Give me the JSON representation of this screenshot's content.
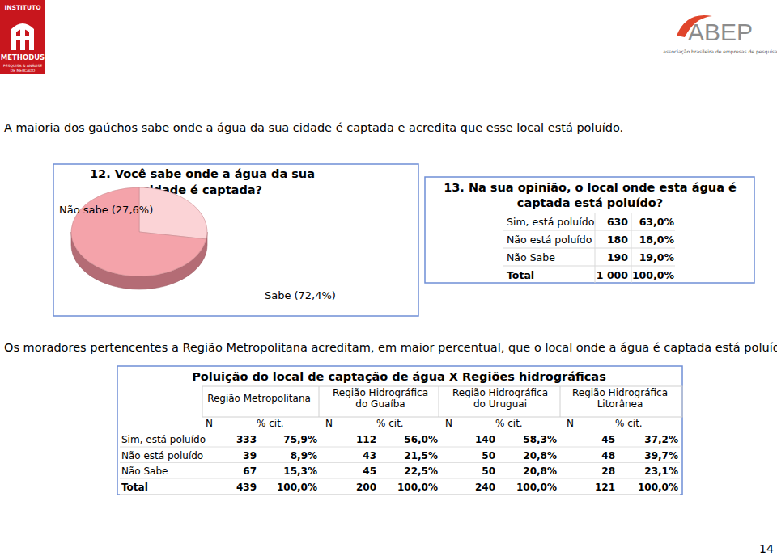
{
  "logos": {
    "methodus": [
      "INSTITUTO",
      "METHODUS",
      "PESQUISA & ANÁLISE",
      "DE MERCADO"
    ],
    "abep": {
      "name": "ABEP",
      "tagline": "associação brasileira de empresas de pesquisa"
    }
  },
  "headlines": [
    "A maioria dos gaúchos sabe onde a água da sua cidade é captada e acredita que esse local está poluído.",
    "Os moradores pertencentes a Região Metropolitana acreditam, em maior percentual, que o local onde a água é captada está poluído."
  ],
  "chart_data": {
    "type": "pie",
    "title": "12. Você sabe onde a água da sua cidade é captada?",
    "categories": [
      "Não sabe",
      "Sabe"
    ],
    "values": [
      27.6,
      72.4
    ],
    "value_labels": [
      "(27,6%)",
      "(72,4%)"
    ],
    "colors": [
      "#fbd3d6",
      "#f4a3aa"
    ],
    "data_labels": true
  },
  "table1": {
    "title": "13. Na sua opinião, o local onde esta água é captada está poluído?",
    "rows": [
      [
        "Sim, está poluído",
        "630",
        "63,0%"
      ],
      [
        "Não está poluído",
        "180",
        "18,0%"
      ],
      [
        "Não Sabe",
        "190",
        "19,0%"
      ],
      [
        "Total",
        "1 000",
        "100,0%"
      ]
    ]
  },
  "table2": {
    "title": "Poluição do local de captação de água X Regiões hidrográficas",
    "groups": [
      "Região Metropolitana",
      "Região Hidrográfica do Guaíba",
      "Região Hidrográfica do Uruguai",
      "Região Hidrográfica Litorânea"
    ],
    "subheaders": [
      "N",
      "% cit."
    ],
    "rows": [
      [
        "Sim, está poluído",
        "333",
        "75,9%",
        "112",
        "56,0%",
        "140",
        "58,3%",
        "45",
        "37,2%"
      ],
      [
        "Não está poluído",
        "39",
        "8,9%",
        "43",
        "21,5%",
        "50",
        "20,8%",
        "48",
        "39,7%"
      ],
      [
        "Não Sabe",
        "67",
        "15,3%",
        "45",
        "22,5%",
        "50",
        "20,8%",
        "28",
        "23,1%"
      ],
      [
        "Total",
        "439",
        "100,0%",
        "200",
        "100,0%",
        "240",
        "100,0%",
        "121",
        "100,0%"
      ]
    ]
  },
  "page_number": "14"
}
